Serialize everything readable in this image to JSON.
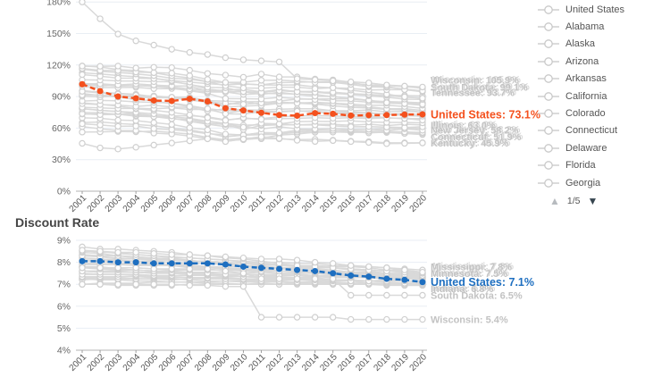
{
  "colors": {
    "accent_orange": "#f4511e",
    "accent_blue": "#1e6fc0",
    "gray_line": "#d9d9d9",
    "gray_marker_stroke": "#cfcfcf",
    "muted_label": "#c3c3c3",
    "muted_label_shadow": "#dadada",
    "grid": "#e9eef4",
    "axis": "#b3b3b3",
    "tick_text": "#666666",
    "year_text": "#555555",
    "title_text": "#454545",
    "legend_text": "#555555",
    "pager_up": "#b7bbbf",
    "pager_down": "#36454f"
  },
  "chart_data": [
    {
      "id": "funded-ratio-chart",
      "type": "line",
      "title": "",
      "x_labels": [
        "2001",
        "2002",
        "2003",
        "2004",
        "2005",
        "2006",
        "2007",
        "2008",
        "2009",
        "2010",
        "2011",
        "2012",
        "2013",
        "2014",
        "2015",
        "2016",
        "2017",
        "2018",
        "2019",
        "2020"
      ],
      "y_ticks": [
        {
          "v": 0,
          "label": "0%"
        },
        {
          "v": 30,
          "label": "30%"
        },
        {
          "v": 60,
          "label": "60%"
        },
        {
          "v": 90,
          "label": "90%"
        },
        {
          "v": 120,
          "label": "120%"
        },
        {
          "v": 150,
          "label": "150%"
        },
        {
          "v": 180,
          "label": "180%"
        }
      ],
      "ylim": [
        0,
        186
      ],
      "series": [
        {
          "name": "South Dakota",
          "accent": false,
          "values": [
            180,
            164,
            149.5,
            143,
            139,
            135,
            132,
            130,
            127,
            125,
            124,
            123,
            107,
            106,
            105,
            104,
            103,
            101,
            100,
            99.1
          ]
        },
        {
          "name": "Kentucky",
          "accent": false,
          "values": [
            45.5,
            41.2,
            40.1,
            41.8,
            43.9,
            45.8,
            47.9,
            49.8,
            47.2,
            49.6,
            51.8,
            50.2,
            48.4,
            47.3,
            48.1,
            47.2,
            46.3,
            45.2,
            45.5,
            45.9
          ]
        },
        {
          "name": "United States",
          "accent": true,
          "color": "#f4511e",
          "values": [
            101.8,
            95.2,
            90.1,
            88.4,
            86.3,
            85.8,
            87.9,
            85.4,
            78.9,
            76.8,
            74.6,
            72.4,
            71.8,
            74.3,
            73.6,
            71.9,
            72.3,
            72.4,
            72.9,
            73.1
          ]
        }
      ],
      "end_labels": [
        {
          "text": "Wisconsin: 105.9%",
          "v": 106.0,
          "style": "muted",
          "mush": true
        },
        {
          "text": "South Dakota: 99.1%",
          "v": 99.1,
          "style": "muted",
          "mush": true
        },
        {
          "text": "Tennessee: 93.7%",
          "v": 93.7,
          "style": "muted",
          "mush": true
        },
        {
          "text": "United States: 73.1%",
          "v": 73.1,
          "style": "accent"
        },
        {
          "text": "Illinois: 63.0%",
          "v": 63.0,
          "style": "muted",
          "mush": true
        },
        {
          "text": "New Jersey: 58.2%",
          "v": 58.2,
          "style": "muted",
          "mush": true
        },
        {
          "text": "Connecticut: 51.9%",
          "v": 51.9,
          "style": "muted",
          "mush": true
        },
        {
          "text": "Kentucky: 45.9%",
          "v": 45.9,
          "style": "muted",
          "mush": true
        }
      ],
      "background_bundle": {
        "seed": 7,
        "count": 30,
        "start_range": [
          59,
          121
        ],
        "end_range": [
          50,
          99
        ],
        "jitter": 5,
        "wobble": 2.2,
        "noise": 1.6,
        "dip": 5,
        "clamp": [
          46,
          122
        ],
        "round": 0
      }
    },
    {
      "id": "discount-rate-chart",
      "type": "line",
      "title": "Discount Rate",
      "x_labels": [
        "2001",
        "2002",
        "2003",
        "2004",
        "2005",
        "2006",
        "2007",
        "2008",
        "2009",
        "2010",
        "2011",
        "2012",
        "2013",
        "2014",
        "2015",
        "2016",
        "2017",
        "2018",
        "2019",
        "2020"
      ],
      "y_ticks": [
        {
          "v": 4,
          "label": "4%"
        },
        {
          "v": 5,
          "label": "5%"
        },
        {
          "v": 6,
          "label": "6%"
        },
        {
          "v": 7,
          "label": "7%"
        },
        {
          "v": 8,
          "label": "8%"
        },
        {
          "v": 9,
          "label": "9%"
        }
      ],
      "ylim": [
        4,
        9
      ],
      "series": [
        {
          "name": "South Dakota",
          "accent": false,
          "values": [
            7.75,
            7.75,
            7.75,
            7.75,
            7.7,
            7.7,
            7.7,
            7.7,
            7.6,
            7.5,
            7.25,
            7.25,
            7.25,
            7.25,
            7.25,
            6.5,
            6.5,
            6.5,
            6.5,
            6.5
          ]
        },
        {
          "name": "Wisconsin",
          "accent": false,
          "values": [
            7.0,
            7.0,
            7.0,
            7.0,
            7.0,
            7.0,
            6.95,
            6.95,
            6.9,
            6.9,
            5.5,
            5.5,
            5.5,
            5.5,
            5.5,
            5.4,
            5.4,
            5.4,
            5.4,
            5.4
          ]
        },
        {
          "name": "United States",
          "accent": true,
          "color": "#1e6fc0",
          "values": [
            8.05,
            8.05,
            8.0,
            8.0,
            7.95,
            7.95,
            7.95,
            7.95,
            7.9,
            7.8,
            7.75,
            7.7,
            7.65,
            7.6,
            7.5,
            7.4,
            7.35,
            7.25,
            7.2,
            7.1
          ]
        }
      ],
      "end_labels": [
        {
          "text": "Mississippi: 7.8%",
          "v": 7.8,
          "style": "muted",
          "mush": true
        },
        {
          "text": "Minnesota: 7.5%",
          "v": 7.5,
          "style": "muted",
          "mush": true
        },
        {
          "text": "United States: 7.1%",
          "v": 7.1,
          "style": "accent"
        },
        {
          "text": "Indiana: 6.8%",
          "v": 6.8,
          "style": "muted",
          "mush": true
        },
        {
          "text": "South Dakota: 6.5%",
          "v": 6.5,
          "style": "muted",
          "mush": false
        },
        {
          "text": "Wisconsin: 5.4%",
          "v": 5.4,
          "style": "muted",
          "mush": false
        }
      ],
      "background_bundle": {
        "seed": 11,
        "count": 30,
        "start_range": [
          7.05,
          8.65
        ],
        "end_range": [
          6.95,
          7.58
        ],
        "jitter": 0.12,
        "wobble": 0.06,
        "noise": 0.04,
        "dip": 0,
        "clamp": [
          6.9,
          8.8
        ],
        "round": 0.05
      }
    }
  ],
  "legend": {
    "items": [
      "United States",
      "Alabama",
      "Alaska",
      "Arizona",
      "Arkansas",
      "California",
      "Colorado",
      "Connecticut",
      "Delaware",
      "Florida",
      "Georgia"
    ],
    "pager": {
      "up_glyph": "▲",
      "label": "1/5",
      "down_glyph": "▼"
    }
  }
}
